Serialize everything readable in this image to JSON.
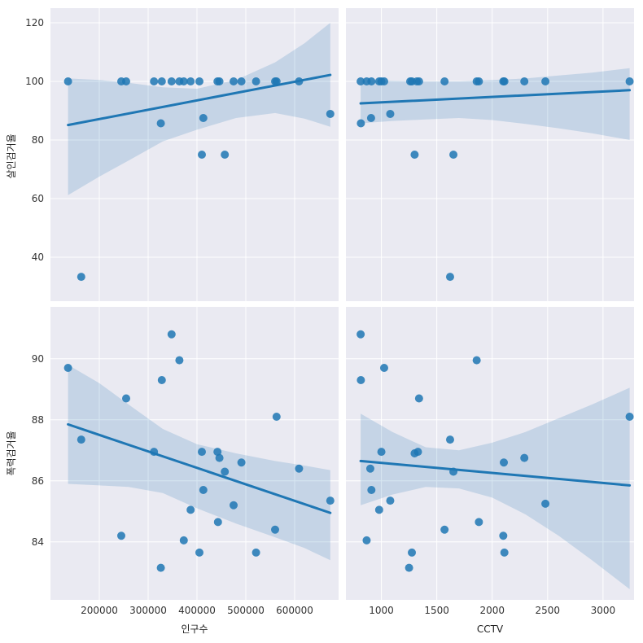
{
  "chart_data": {
    "type": "scatter",
    "kind": "pairplot-regression",
    "grid": true,
    "colors": {
      "background": "#eaeaf2",
      "grid": "#ffffff",
      "point": "#1f77b4",
      "line": "#1f77b4",
      "band": "#1f77b4"
    },
    "x_vars": [
      {
        "name": "인구수",
        "range": [
          100000,
          690000
        ],
        "ticks": [
          200000,
          300000,
          400000,
          500000,
          600000
        ],
        "tick_labels": [
          "200000",
          "300000",
          "400000",
          "500000",
          "600000"
        ]
      },
      {
        "name": "CCTV",
        "range": [
          680,
          3280
        ],
        "ticks": [
          1000,
          1500,
          2000,
          2500,
          3000
        ],
        "tick_labels": [
          "1000",
          "1500",
          "2000",
          "2500",
          "3000"
        ]
      }
    ],
    "y_vars": [
      {
        "name": "살인검거율",
        "range": [
          25,
          125
        ],
        "ticks": [
          40,
          60,
          80,
          100,
          120
        ],
        "tick_labels": [
          "40",
          "60",
          "80",
          "100",
          "120"
        ]
      },
      {
        "name": "폭력검거율",
        "range": [
          82.1,
          91.7
        ],
        "ticks": [
          84,
          86,
          88,
          90
        ],
        "tick_labels": [
          "84",
          "86",
          "88",
          "90"
        ]
      }
    ],
    "panels": [
      {
        "row": 0,
        "col": 0,
        "points": [
          [
            136000,
            100
          ],
          [
            163000,
            33.3
          ],
          [
            245000,
            100
          ],
          [
            255000,
            100
          ],
          [
            312000,
            100
          ],
          [
            326000,
            85.7
          ],
          [
            328000,
            100
          ],
          [
            348000,
            100
          ],
          [
            364000,
            100
          ],
          [
            373000,
            100
          ],
          [
            387000,
            100
          ],
          [
            405000,
            100
          ],
          [
            410000,
            75
          ],
          [
            413000,
            87.5
          ],
          [
            442000,
            100
          ],
          [
            446000,
            100
          ],
          [
            457000,
            75
          ],
          [
            475000,
            100
          ],
          [
            491000,
            100
          ],
          [
            521000,
            100
          ],
          [
            560000,
            100
          ],
          [
            563000,
            100
          ],
          [
            609000,
            100
          ],
          [
            673000,
            88.9
          ]
        ],
        "fit": {
          "x": [
            136000,
            673000
          ],
          "y": [
            85.1,
            102.2
          ]
        },
        "band": {
          "x": [
            136000,
            200000,
            260000,
            330000,
            400000,
            480000,
            560000,
            620000,
            673000
          ],
          "upper": [
            101,
            100.5,
            99.5,
            98,
            97.5,
            100.5,
            106.5,
            113,
            120
          ],
          "lower": [
            61.2,
            67.5,
            73,
            79.5,
            83.5,
            87.5,
            89.2,
            87.3,
            84.5
          ]
        }
      },
      {
        "row": 0,
        "col": 1,
        "points": [
          [
            813,
            100
          ],
          [
            815,
            85.7
          ],
          [
            867,
            100
          ],
          [
            907,
            87.5
          ],
          [
            910,
            100
          ],
          [
            980,
            100
          ],
          [
            1000,
            100
          ],
          [
            1025,
            100
          ],
          [
            1080,
            88.9
          ],
          [
            1260,
            100
          ],
          [
            1275,
            100
          ],
          [
            1300,
            75
          ],
          [
            1320,
            100
          ],
          [
            1340,
            100
          ],
          [
            1570,
            100
          ],
          [
            1620,
            33.3
          ],
          [
            1650,
            75
          ],
          [
            1860,
            100
          ],
          [
            1880,
            100
          ],
          [
            2100,
            100
          ],
          [
            2110,
            100
          ],
          [
            2290,
            100
          ],
          [
            2480,
            100
          ],
          [
            3240,
            100
          ]
        ],
        "fit": {
          "x": [
            813,
            3240
          ],
          "y": [
            92.5,
            97
          ]
        },
        "band": {
          "x": [
            813,
            1100,
            1400,
            1700,
            2000,
            2300,
            2600,
            2900,
            3240
          ],
          "upper": [
            100.5,
            100.2,
            100,
            100,
            100.5,
            101,
            102,
            103,
            104.5
          ],
          "lower": [
            85.7,
            86.5,
            87,
            87.5,
            86.8,
            85.5,
            84,
            82.3,
            80
          ]
        }
      },
      {
        "row": 1,
        "col": 0,
        "points": [
          [
            136000,
            89.7
          ],
          [
            163000,
            87.35
          ],
          [
            245000,
            84.2
          ],
          [
            255000,
            88.7
          ],
          [
            312000,
            86.95
          ],
          [
            326000,
            83.15
          ],
          [
            328000,
            89.3
          ],
          [
            348000,
            90.8
          ],
          [
            364000,
            89.95
          ],
          [
            373000,
            84.05
          ],
          [
            387000,
            85.05
          ],
          [
            405000,
            83.65
          ],
          [
            410000,
            86.95
          ],
          [
            413000,
            85.7
          ],
          [
            442000,
            86.95
          ],
          [
            443000,
            84.65
          ],
          [
            446000,
            86.75
          ],
          [
            457000,
            86.3
          ],
          [
            475000,
            85.2
          ],
          [
            491000,
            86.6
          ],
          [
            521000,
            83.65
          ],
          [
            560000,
            84.4
          ],
          [
            563000,
            88.1
          ],
          [
            609000,
            86.4
          ],
          [
            673000,
            85.35
          ]
        ],
        "fit": {
          "x": [
            136000,
            673000
          ],
          "y": [
            87.85,
            84.95
          ]
        },
        "band": {
          "x": [
            136000,
            200000,
            260000,
            330000,
            400000,
            480000,
            560000,
            620000,
            673000
          ],
          "upper": [
            89.8,
            89.2,
            88.5,
            87.7,
            87.2,
            86.9,
            86.65,
            86.5,
            86.35
          ],
          "lower": [
            85.9,
            85.85,
            85.8,
            85.6,
            85.1,
            84.6,
            84.15,
            83.8,
            83.4
          ]
        }
      },
      {
        "row": 1,
        "col": 1,
        "points": [
          [
            813,
            90.8
          ],
          [
            815,
            89.3
          ],
          [
            867,
            84.05
          ],
          [
            900,
            86.4
          ],
          [
            910,
            85.7
          ],
          [
            980,
            85.05
          ],
          [
            1000,
            86.95
          ],
          [
            1025,
            89.7
          ],
          [
            1080,
            85.35
          ],
          [
            1250,
            83.15
          ],
          [
            1275,
            83.65
          ],
          [
            1300,
            86.9
          ],
          [
            1330,
            86.95
          ],
          [
            1340,
            88.7
          ],
          [
            1570,
            84.4
          ],
          [
            1620,
            87.35
          ],
          [
            1650,
            86.3
          ],
          [
            1860,
            89.95
          ],
          [
            1880,
            84.65
          ],
          [
            2100,
            84.2
          ],
          [
            2105,
            86.6
          ],
          [
            2110,
            83.65
          ],
          [
            2290,
            86.75
          ],
          [
            2480,
            85.25
          ],
          [
            3240,
            88.1
          ]
        ],
        "fit": {
          "x": [
            813,
            3240
          ],
          "y": [
            86.65,
            85.85
          ]
        },
        "band": {
          "x": [
            813,
            1100,
            1400,
            1700,
            2000,
            2300,
            2600,
            2900,
            3240
          ],
          "upper": [
            88.2,
            87.6,
            87.1,
            87,
            87.25,
            87.6,
            88.05,
            88.5,
            89.05
          ],
          "lower": [
            85.2,
            85.55,
            85.8,
            85.75,
            85.45,
            84.9,
            84.2,
            83.4,
            82.45
          ]
        }
      }
    ]
  }
}
